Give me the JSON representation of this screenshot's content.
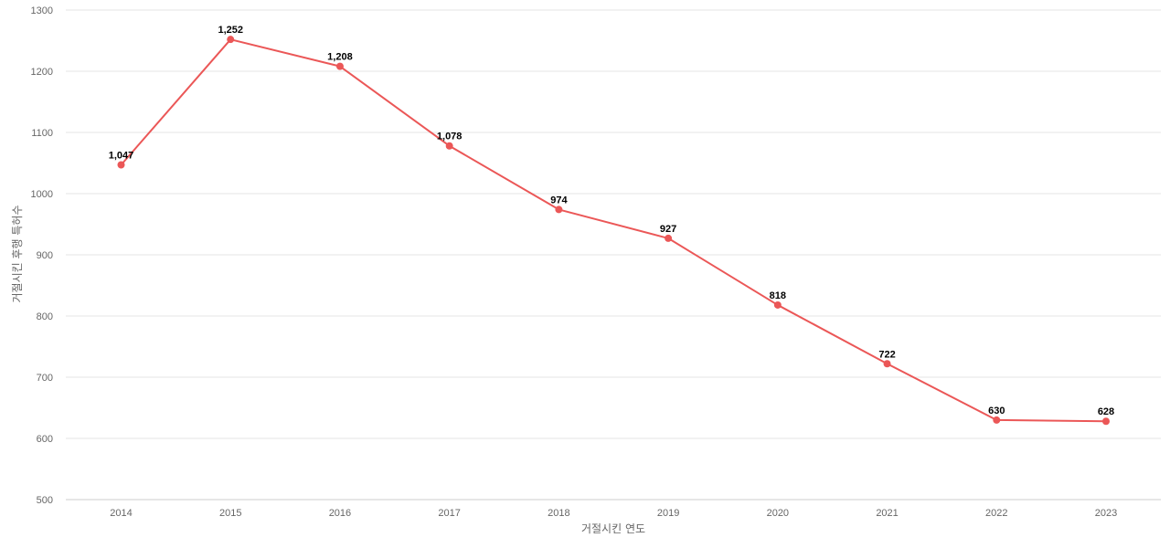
{
  "chart_data": {
    "type": "line",
    "title": "",
    "xlabel": "거절시킨 연도",
    "ylabel": "거절시킨 후행 특허수",
    "categories": [
      "2014",
      "2015",
      "2016",
      "2017",
      "2018",
      "2019",
      "2020",
      "2021",
      "2022",
      "2023"
    ],
    "series": [
      {
        "values": [
          1047,
          1252,
          1208,
          1078,
          974,
          927,
          818,
          722,
          630,
          628
        ],
        "labels": [
          "1,047",
          "1,252",
          "1,208",
          "1,078",
          "974",
          "927",
          "818",
          "722",
          "630",
          "628"
        ],
        "color": "#eb5757"
      }
    ],
    "yticks": [
      "500",
      "600",
      "700",
      "800",
      "900",
      "1000",
      "1100",
      "1200",
      "1300"
    ],
    "ylim": [
      500,
      1300
    ],
    "grid": true,
    "legend": "none"
  }
}
